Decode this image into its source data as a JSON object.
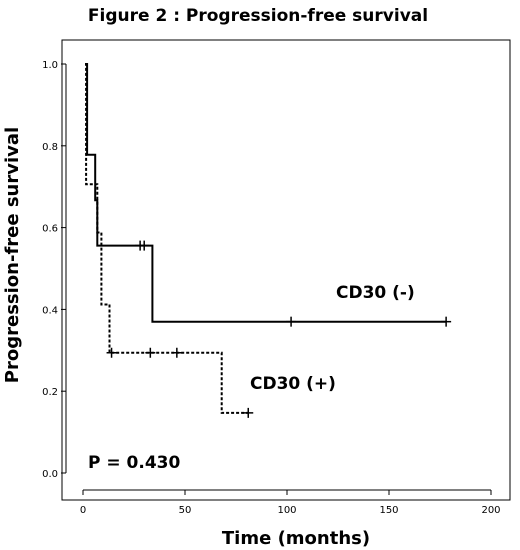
{
  "chart_data": {
    "type": "line",
    "subtype": "kaplan-meier step",
    "title": "Figure 2 : Progression-free survival",
    "xlabel": "Time (months)",
    "ylabel": "Progression-free survival",
    "xlim": [
      0,
      200
    ],
    "ylim": [
      0.0,
      1.0
    ],
    "x_ticks": [
      0,
      50,
      100,
      150,
      200
    ],
    "x_tick_labels": [
      "0",
      "50",
      "100",
      "150",
      "200"
    ],
    "y_ticks": [
      0.0,
      0.2,
      0.4,
      0.6,
      0.8,
      1.0
    ],
    "y_tick_labels": [
      "0.0",
      "0.2",
      "0.4",
      "0.6",
      "0.8",
      "1.0"
    ],
    "grid": false,
    "series": [
      {
        "name": "CD30 (-)",
        "line_style": "solid",
        "color": "#000000",
        "x": [
          1,
          2,
          2,
          6,
          6,
          7,
          7,
          34,
          34,
          178
        ],
        "y": [
          1.0,
          1.0,
          0.778,
          0.778,
          0.667,
          0.667,
          0.556,
          0.556,
          0.37,
          0.37
        ],
        "censored": [
          {
            "x": 28,
            "y": 0.556
          },
          {
            "x": 30,
            "y": 0.556
          },
          {
            "x": 102,
            "y": 0.37
          },
          {
            "x": 178,
            "y": 0.37
          }
        ]
      },
      {
        "name": "CD30 (+)",
        "line_style": "dotted",
        "color": "#000000",
        "x": [
          1,
          1.5,
          1.5,
          7,
          7,
          9,
          9,
          13,
          13,
          68,
          68,
          81
        ],
        "y": [
          1.0,
          1.0,
          0.706,
          0.706,
          0.588,
          0.588,
          0.412,
          0.412,
          0.294,
          0.294,
          0.147,
          0.147
        ],
        "censored": [
          {
            "x": 14,
            "y": 0.294
          },
          {
            "x": 33,
            "y": 0.294
          },
          {
            "x": 46,
            "y": 0.294
          },
          {
            "x": 81,
            "y": 0.147
          }
        ]
      }
    ],
    "annotations": {
      "p_value": "P = 0.430",
      "label_neg": "CD30 (-)",
      "label_pos": "CD30 (+)"
    }
  }
}
